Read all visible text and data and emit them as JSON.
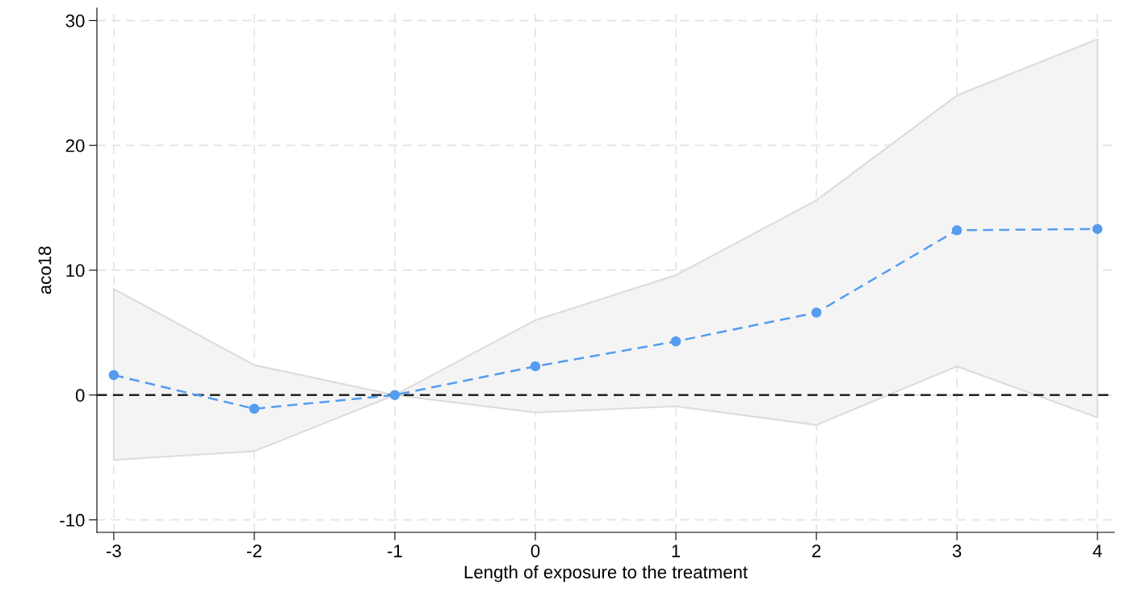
{
  "chart_data": {
    "type": "line",
    "xlabel": "Length of exposure to the treatment",
    "ylabel": "aco18",
    "x": [
      -3,
      -2,
      -1,
      0,
      1,
      2,
      3,
      4
    ],
    "series": [
      {
        "color": "#559cf0",
        "values": [
          1.6,
          -1.1,
          0,
          2.3,
          4.3,
          6.6,
          13.2,
          13.3
        ],
        "lower": [
          -5.2,
          -4.5,
          0,
          -1.4,
          -0.9,
          -2.4,
          2.3,
          -1.8
        ],
        "upper": [
          8.5,
          2.4,
          0,
          6.0,
          9.6,
          15.6,
          24.0,
          28.5
        ]
      }
    ],
    "xlim": [
      -3.12,
      4.12
    ],
    "ylim": [
      -11,
      31
    ],
    "xticks": [
      -3,
      -2,
      -1,
      0,
      1,
      2,
      3,
      4
    ],
    "yticks": [
      -10,
      0,
      10,
      20,
      30
    ],
    "ref_lines": [
      {
        "axis": "y",
        "value": 0,
        "label": null,
        "color": "#222222",
        "line_style": "dashed"
      }
    ],
    "grid": true,
    "marker": "circle",
    "line_style": "dashed"
  }
}
